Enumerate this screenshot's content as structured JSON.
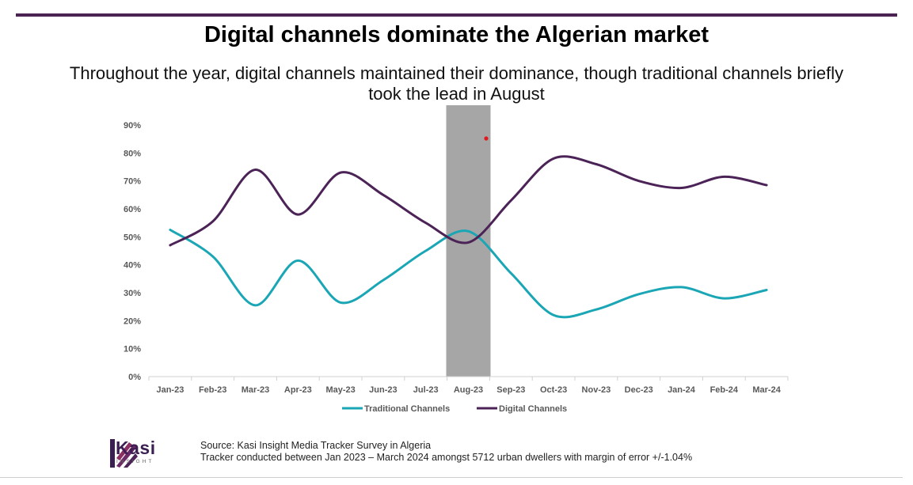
{
  "page": {
    "title": "Digital channels dominate the Algerian market",
    "subtitle": "Throughout the year, digital channels maintained their dominance, though traditional channels briefly took the lead in August"
  },
  "colors": {
    "rule": "#4a2352",
    "traditional": "#1aa6b5",
    "digital": "#4b2357",
    "highlight": "#a6a6a6",
    "marker": "#e0191e"
  },
  "chart_data": {
    "type": "line",
    "categories": [
      "Jan-23",
      "Feb-23",
      "Mar-23",
      "Apr-23",
      "May-23",
      "Jun-23",
      "Jul-23",
      "Aug-23",
      "Sep-23",
      "Oct-23",
      "Nov-23",
      "Dec-23",
      "Jan-24",
      "Feb-24",
      "Mar-24"
    ],
    "series": [
      {
        "name": "Traditional Channels",
        "color": "#1aa6b5",
        "values": [
          52.5,
          43,
          25.5,
          41.5,
          26.5,
          34.5,
          45,
          52,
          37,
          22,
          24,
          29.5,
          32,
          28,
          31
        ]
      },
      {
        "name": "Digital Channels",
        "color": "#4b2357",
        "values": [
          47,
          55.5,
          74,
          58,
          73,
          65,
          55,
          48,
          63,
          78,
          76,
          70,
          67.5,
          71.5,
          68.5
        ]
      }
    ],
    "yticks": [
      "0%",
      "10%",
      "20%",
      "30%",
      "40%",
      "50%",
      "60%",
      "70%",
      "80%",
      "90%"
    ],
    "ylim": [
      0,
      90
    ],
    "highlight_category": "Aug-23",
    "legend": [
      "Traditional Channels",
      "Digital Channels"
    ],
    "legend_position": "bottom"
  },
  "footer": {
    "logo_text": "Kasi",
    "logo_sub": "INSIGHT",
    "source_line1": "Source: Kasi Insight Media Tracker Survey in Algeria",
    "source_line2": "Tracker conducted  between Jan 2023 – March 2024 amongst 5712 urban dwellers with margin of error +/-1.04%"
  }
}
